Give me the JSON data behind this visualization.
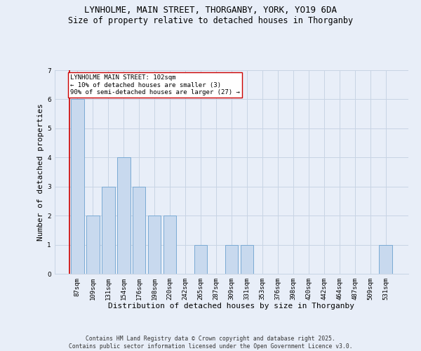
{
  "title1": "LYNHOLME, MAIN STREET, THORGANBY, YORK, YO19 6DA",
  "title2": "Size of property relative to detached houses in Thorganby",
  "xlabel": "Distribution of detached houses by size in Thorganby",
  "ylabel": "Number of detached properties",
  "categories": [
    "87sqm",
    "109sqm",
    "131sqm",
    "154sqm",
    "176sqm",
    "198sqm",
    "220sqm",
    "242sqm",
    "265sqm",
    "287sqm",
    "309sqm",
    "331sqm",
    "353sqm",
    "376sqm",
    "398sqm",
    "420sqm",
    "442sqm",
    "464sqm",
    "487sqm",
    "509sqm",
    "531sqm"
  ],
  "values": [
    6,
    2,
    3,
    4,
    3,
    2,
    2,
    0,
    1,
    0,
    1,
    1,
    0,
    0,
    0,
    0,
    0,
    0,
    0,
    0,
    1
  ],
  "bar_color": "#c8d9ee",
  "bar_edge_color": "#7aaad4",
  "grid_color": "#c8d4e4",
  "background_color": "#e8eef8",
  "annotation_text": "LYNHOLME MAIN STREET: 102sqm\n← 10% of detached houses are smaller (3)\n90% of semi-detached houses are larger (27) →",
  "annotation_box_color": "#ffffff",
  "annotation_box_edge": "#cc0000",
  "vline_color": "#cc0000",
  "vline_x": -0.5,
  "ylim": [
    0,
    7
  ],
  "yticks": [
    0,
    1,
    2,
    3,
    4,
    5,
    6,
    7
  ],
  "footer": "Contains HM Land Registry data © Crown copyright and database right 2025.\nContains public sector information licensed under the Open Government Licence v3.0.",
  "title_fontsize": 9,
  "subtitle_fontsize": 8.5,
  "xlabel_fontsize": 8,
  "ylabel_fontsize": 8,
  "tick_fontsize": 6.5,
  "annot_fontsize": 6.5,
  "footer_fontsize": 5.8
}
